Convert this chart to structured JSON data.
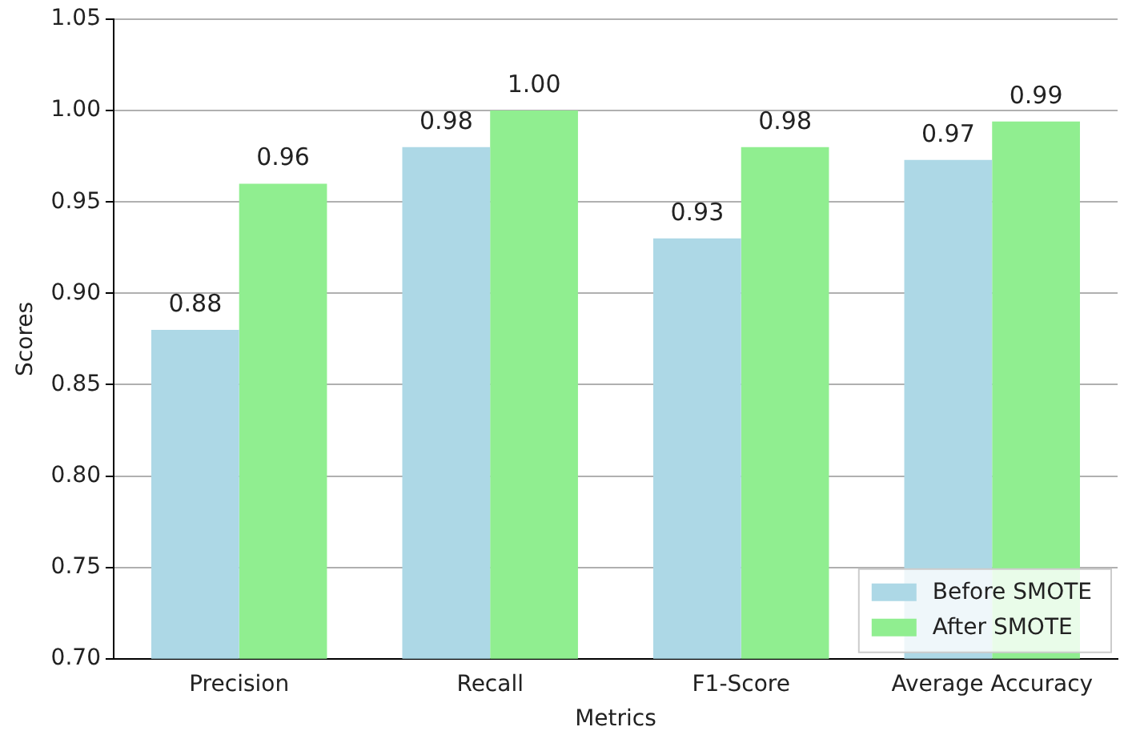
{
  "chart_data": {
    "type": "bar",
    "xlabel": "Metrics",
    "ylabel": "Scores",
    "categories": [
      "Precision",
      "Recall",
      "F1-Score",
      "Average Accuracy"
    ],
    "series": [
      {
        "name": "Before SMOTE",
        "color": "#add8e6",
        "values": [
          0.88,
          0.98,
          0.93,
          0.973
        ],
        "value_labels": [
          "0.88",
          "0.98",
          "0.93",
          "0.97"
        ]
      },
      {
        "name": "After SMOTE",
        "color": "#90ee90",
        "values": [
          0.96,
          1.0,
          0.98,
          0.994
        ],
        "value_labels": [
          "0.96",
          "1.00",
          "0.98",
          "0.99"
        ]
      }
    ],
    "ylim": [
      0.7,
      1.05
    ],
    "yticks": [
      {
        "value": 0.7,
        "label": "0.70"
      },
      {
        "value": 0.75,
        "label": "0.75"
      },
      {
        "value": 0.8,
        "label": "0.80"
      },
      {
        "value": 0.85,
        "label": "0.85"
      },
      {
        "value": 0.9,
        "label": "0.90"
      },
      {
        "value": 0.95,
        "label": "0.95"
      },
      {
        "value": 1.0,
        "label": "1.00"
      },
      {
        "value": 1.05,
        "label": "1.05"
      }
    ],
    "grid": "y",
    "legend": "bottom right"
  }
}
